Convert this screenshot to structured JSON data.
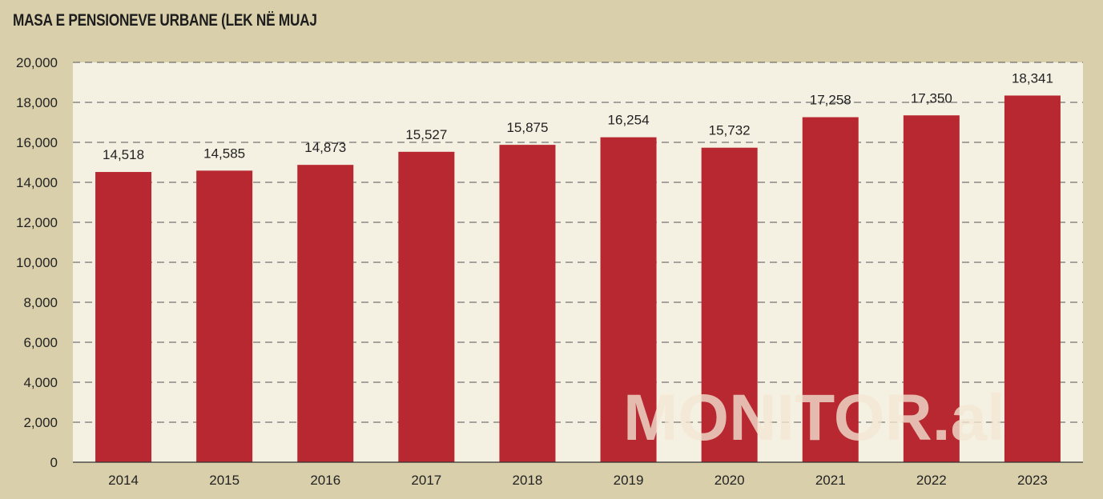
{
  "title": "MASA E PENSIONEVE URBANE (LEK NË MUAJ",
  "watermark": "MONITOR.al",
  "colors": {
    "page_background": "#d9cfab",
    "plot_background": "#f4f0e2",
    "bar": "#b72831",
    "gridline": "#555555",
    "watermark": "#f3e6d4"
  },
  "chart_data": {
    "type": "bar",
    "title": "MASA E PENSIONEVE URBANE (LEK NË MUAJ",
    "xlabel": "",
    "ylabel": "",
    "categories": [
      "2014",
      "2015",
      "2016",
      "2017",
      "2018",
      "2019",
      "2020",
      "2021",
      "2022",
      "2023"
    ],
    "values": [
      14518,
      14585,
      14873,
      15527,
      15875,
      16254,
      15732,
      17258,
      17350,
      18341
    ],
    "data_labels": [
      "14,518",
      "14,585",
      "14,873",
      "15,527",
      "15,875",
      "16,254",
      "15,732",
      "17,258",
      "17,350",
      "18,341"
    ],
    "ylim": [
      0,
      20000
    ],
    "yticks": [
      0,
      2000,
      4000,
      6000,
      8000,
      10000,
      12000,
      14000,
      16000,
      18000,
      20000
    ],
    "ytick_labels": [
      "0",
      "2,000",
      "4,000",
      "6,000",
      "8,000",
      "10,000",
      "12,000",
      "14,000",
      "16,000",
      "18,000",
      "20,000"
    ],
    "grid": "horizontal dashed",
    "legend": "none"
  }
}
